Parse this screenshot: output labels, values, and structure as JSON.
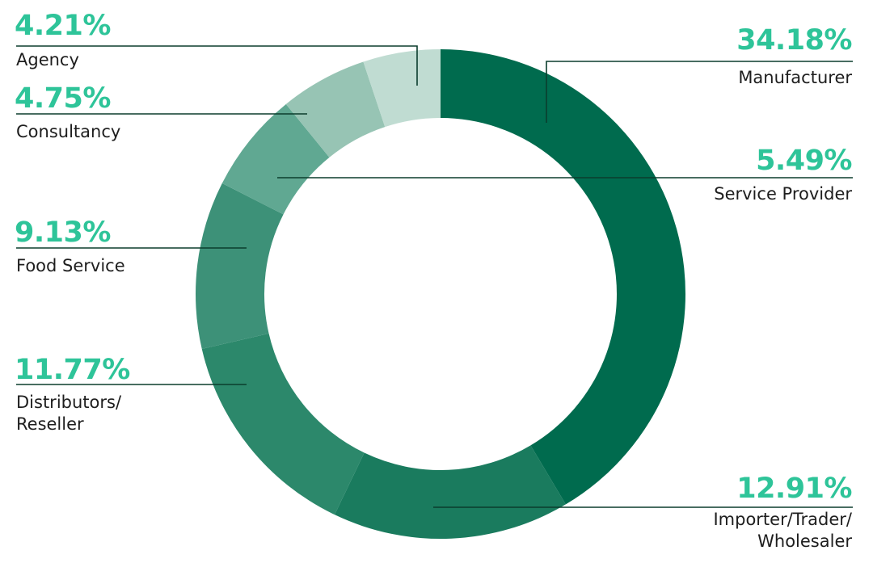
{
  "chart_data": {
    "type": "pie",
    "variant": "donut",
    "categories": [
      "Manufacturer",
      "Importer/Trader/\nWholesaler",
      "Distributors/\nReseller",
      "Food Service",
      "Service Provider",
      "Consultancy",
      "Agency"
    ],
    "values": [
      34.18,
      12.91,
      11.77,
      9.13,
      5.49,
      4.75,
      4.21
    ],
    "value_labels": [
      "34.18%",
      "12.91%",
      "11.77%",
      "9.13%",
      "5.49%",
      "4.75%",
      "4.21%"
    ],
    "colors": [
      "#006b4e",
      "#1a7b5e",
      "#2c886b",
      "#3d9178",
      "#60a892",
      "#97c4b4",
      "#c0dcd2"
    ],
    "label_color": "#2ec499",
    "leader_line_color": "#0b3d2d",
    "direction": "clockwise",
    "start": "top"
  }
}
